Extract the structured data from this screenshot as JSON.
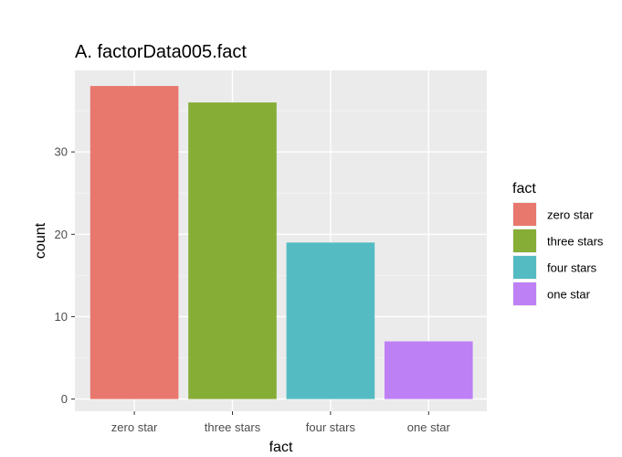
{
  "chart_data": {
    "type": "bar",
    "title": "A. factorData005.fact",
    "xlabel": "fact",
    "ylabel": "count",
    "categories": [
      "zero star",
      "three stars",
      "four stars",
      "one star"
    ],
    "values": [
      38,
      36,
      19,
      7
    ],
    "colors": [
      "#E8776E",
      "#86AD36",
      "#55BBC2",
      "#BE80F5"
    ],
    "yticks": [
      0,
      10,
      20,
      30
    ],
    "ylim": [
      0,
      40
    ],
    "grid": true,
    "panel_background": "#EBEBEB",
    "legend": {
      "title": "fact",
      "position": "right",
      "entries": [
        "zero star",
        "three stars",
        "four stars",
        "one star"
      ]
    }
  }
}
